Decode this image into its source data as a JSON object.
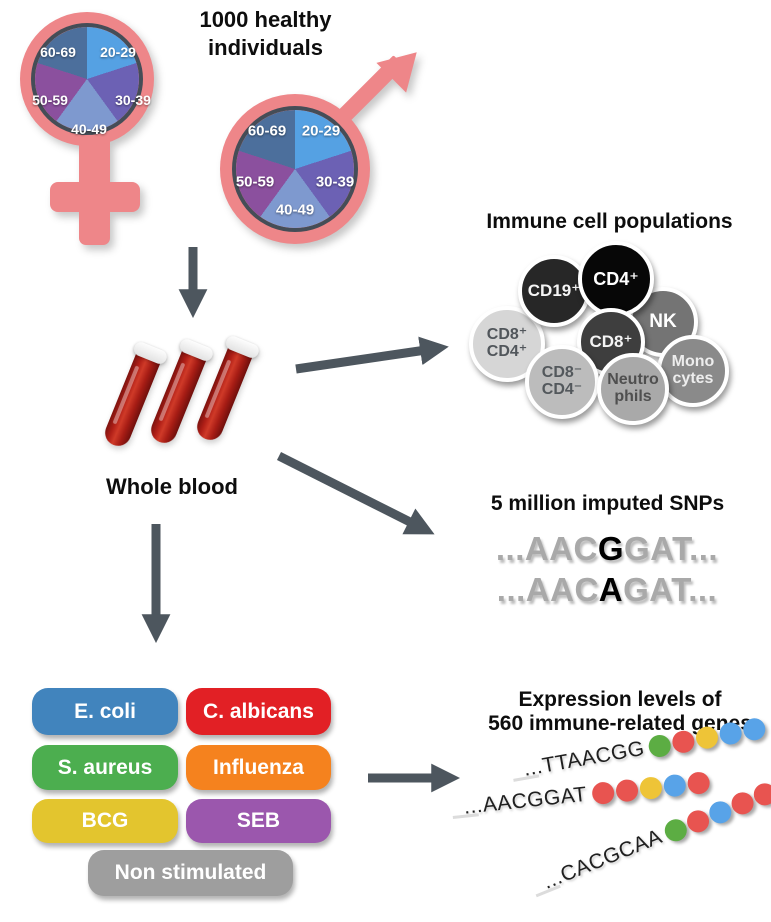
{
  "figure": {
    "arrow_color": "#4d565e",
    "symbol_color": "#ee8689"
  },
  "cohort": {
    "title": "1000 healthy\nindividuals",
    "age_groups": [
      {
        "label": "20-29",
        "color": "#55a1e3"
      },
      {
        "label": "30-39",
        "color": "#6c61b4"
      },
      {
        "label": "40-49",
        "color": "#7e99cf"
      },
      {
        "label": "50-59",
        "color": "#8b509e"
      },
      {
        "label": "60-69",
        "color": "#4c6f9c"
      }
    ]
  },
  "whole_blood": {
    "label": "Whole blood"
  },
  "immune_cells": {
    "title": "Immune cell populations",
    "cells": [
      {
        "label": "CD8⁺\nCD4⁺",
        "color": "#d6d6d6",
        "text_color": "#51565b"
      },
      {
        "label": "CD19⁺",
        "color": "#272727",
        "text_color": "#f5f5f5"
      },
      {
        "label": "NK",
        "color": "#747474",
        "text_color": "#ffffff"
      },
      {
        "label": "CD4⁺",
        "color": "#070707",
        "text_color": "#ffffff"
      },
      {
        "label": "CD8⁺",
        "color": "#3e3e3e",
        "text_color": "#f5f5f5"
      },
      {
        "label": "CD8⁻\nCD4⁻",
        "color": "#bcbcbc",
        "text_color": "#53585c"
      },
      {
        "label": "Mono\ncytes",
        "color": "#8a8a8a",
        "text_color": "#ededed"
      },
      {
        "label": "Neutro\nphils",
        "color": "#a9a9a9",
        "text_color": "#4f4f4f"
      }
    ]
  },
  "snps": {
    "title": "5 million imputed SNPs",
    "sequences": [
      {
        "prefix": "...AAC",
        "snp": "G",
        "suffix": "GAT..."
      },
      {
        "prefix": "...AAC",
        "snp": "A",
        "suffix": "GAT..."
      }
    ]
  },
  "stimuli": {
    "items": [
      {
        "label": "E. coli",
        "color": "#4184bd"
      },
      {
        "label": "C. albicans",
        "color": "#e22025"
      },
      {
        "label": "S. aureus",
        "color": "#4cae4f"
      },
      {
        "label": "Influenza",
        "color": "#f5821e"
      },
      {
        "label": "BCG",
        "color": "#e3c52e"
      },
      {
        "label": "SEB",
        "color": "#9b57ad"
      },
      {
        "label": "Non stimulated",
        "color": "#9e9e9e"
      }
    ]
  },
  "expression": {
    "title": "Expression levels of\n560 immune-related genes",
    "dot_colors": {
      "green": "#5cad43",
      "red": "#e85450",
      "yellow": "#eec437",
      "blue": "#58a3e8"
    },
    "rows": [
      {
        "sequence": "...TTAACGG",
        "dots": [
          "green",
          "red",
          "yellow",
          "blue",
          "blue"
        ]
      },
      {
        "sequence": "...AACGGAT",
        "dots": [
          "red",
          "red",
          "yellow",
          "blue",
          "red"
        ]
      },
      {
        "sequence": "...CACGCAA",
        "dots": [
          "green",
          "red",
          "blue",
          "red",
          "red"
        ]
      }
    ]
  }
}
